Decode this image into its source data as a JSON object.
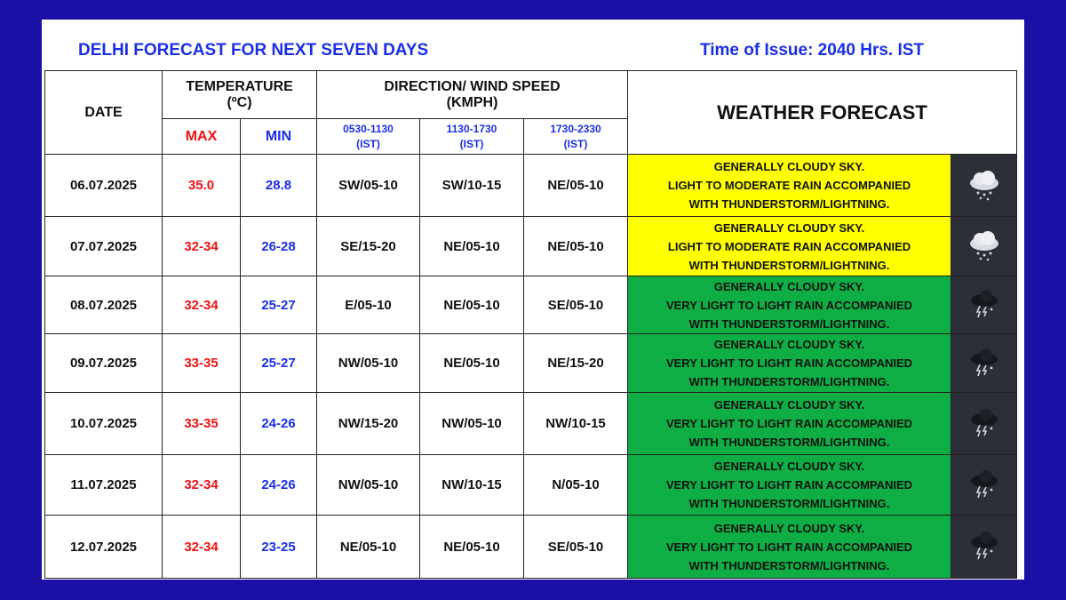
{
  "header": {
    "title": "DELHI FORECAST FOR NEXT SEVEN DAYS",
    "issue_time": "Time of Issue: 2040 Hrs. IST"
  },
  "columns": {
    "date": "DATE",
    "temperature": "TEMPERATURE",
    "temp_unit": "(ºC)",
    "max": "MAX",
    "min": "MIN",
    "wind": "DIRECTION/ WIND SPEED",
    "wind_unit": "(KMPH)",
    "slots": [
      "0530-1130",
      "1130-1730",
      "1730-2330"
    ],
    "slot_suffix": "(IST)",
    "forecast": "WEATHER FORECAST"
  },
  "colors": {
    "yellow": "#ffff00",
    "green": "#0fae45",
    "max": "#f01010",
    "min": "#1a2ee6"
  },
  "rows": [
    {
      "date": "06.07.2025",
      "max": "35.0",
      "min": "28.8",
      "w1": "SW/05-10",
      "w2": "SW/10-15",
      "w3": "NE/05-10",
      "l1": "GENERALLY CLOUDY SKY.",
      "l2": "LIGHT TO MODERATE RAIN ACCOMPANIED",
      "l3": "WITH THUNDERSTORM/LIGHTNING.",
      "color": "yellow",
      "icon": "cloud-rain-icon"
    },
    {
      "date": "07.07.2025",
      "max": "32-34",
      "min": "26-28",
      "w1": "SE/15-20",
      "w2": "NE/05-10",
      "w3": "NE/05-10",
      "l1": "GENERALLY CLOUDY SKY.",
      "l2": "LIGHT TO MODERATE RAIN ACCOMPANIED",
      "l3": "WITH THUNDERSTORM/LIGHTNING.",
      "color": "yellow",
      "icon": "cloud-rain-icon"
    },
    {
      "date": "08.07.2025",
      "max": "32-34",
      "min": "25-27",
      "w1": "E/05-10",
      "w2": "NE/05-10",
      "w3": "SE/05-10",
      "l1": "GENERALLY CLOUDY SKY.",
      "l2": "VERY LIGHT TO LIGHT RAIN ACCOMPANIED",
      "l3": "WITH THUNDERSTORM/LIGHTNING.",
      "color": "green",
      "icon": "thunderstorm-icon"
    },
    {
      "date": "09.07.2025",
      "max": "33-35",
      "min": "25-27",
      "w1": "NW/05-10",
      "w2": "NE/05-10",
      "w3": "NE/15-20",
      "l1": "GENERALLY CLOUDY SKY.",
      "l2": "VERY LIGHT TO LIGHT RAIN ACCOMPANIED",
      "l3": "WITH THUNDERSTORM/LIGHTNING.",
      "color": "green",
      "icon": "thunderstorm-icon"
    },
    {
      "date": "10.07.2025",
      "max": "33-35",
      "min": "24-26",
      "w1": "NW/15-20",
      "w2": "NW/05-10",
      "w3": "NW/10-15",
      "l1": "GENERALLY CLOUDY SKY.",
      "l2": "VERY LIGHT TO LIGHT RAIN ACCOMPANIED",
      "l3": "WITH THUNDERSTORM/LIGHTNING.",
      "color": "green",
      "icon": "thunderstorm-icon"
    },
    {
      "date": "11.07.2025",
      "max": "32-34",
      "min": "24-26",
      "w1": "NW/05-10",
      "w2": "NW/10-15",
      "w3": "N/05-10",
      "l1": "GENERALLY CLOUDY SKY.",
      "l2": "VERY LIGHT TO LIGHT RAIN ACCOMPANIED",
      "l3": "WITH THUNDERSTORM/LIGHTNING.",
      "color": "green",
      "icon": "thunderstorm-icon"
    },
    {
      "date": "12.07.2025",
      "max": "32-34",
      "min": "23-25",
      "w1": "NE/05-10",
      "w2": "NE/05-10",
      "w3": "SE/05-10",
      "l1": "GENERALLY CLOUDY SKY.",
      "l2": "VERY LIGHT TO LIGHT RAIN ACCOMPANIED",
      "l3": "WITH THUNDERSTORM/LIGHTNING.",
      "color": "green",
      "icon": "thunderstorm-icon"
    }
  ]
}
